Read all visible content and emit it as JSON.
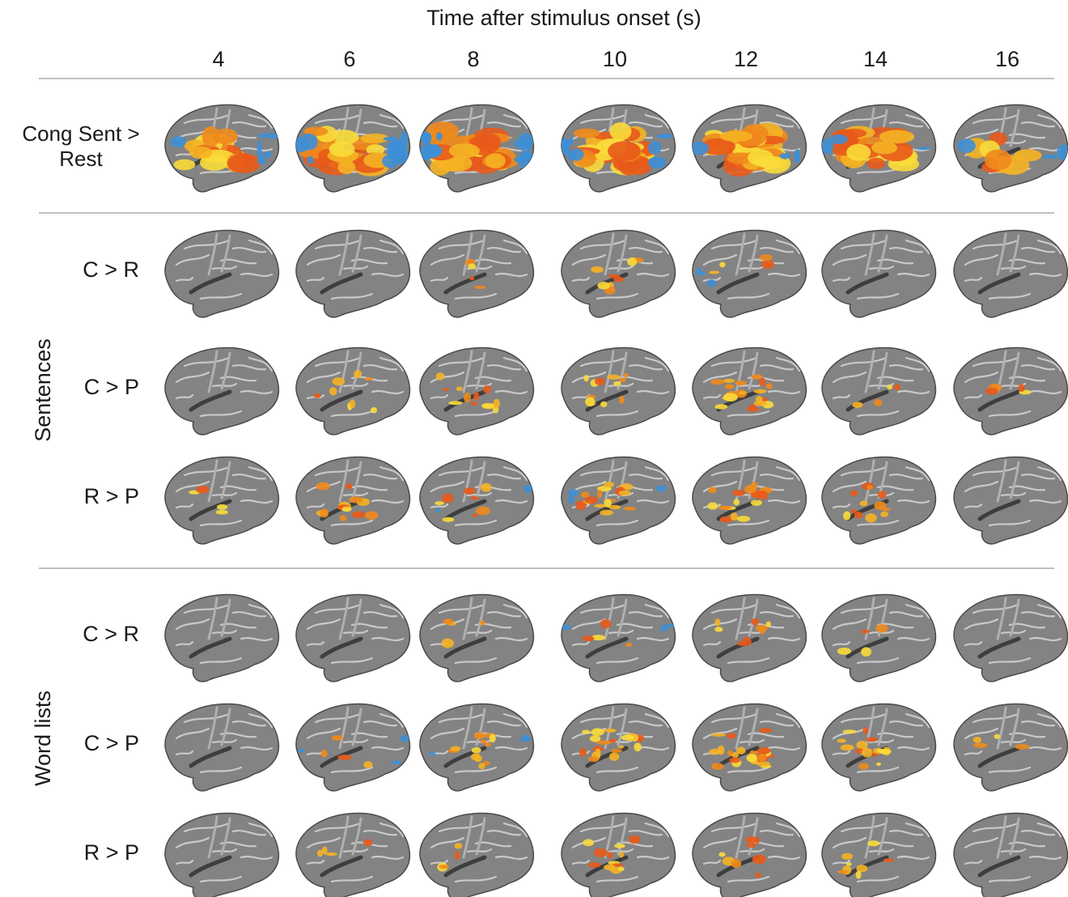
{
  "title": "Time after stimulus onset (s)",
  "columns": [
    "4",
    "6",
    "8",
    "10",
    "12",
    "14",
    "16"
  ],
  "top_row": {
    "label_lines": [
      "Cong Sent >",
      "Rest"
    ]
  },
  "groups": [
    {
      "label": "Sentences",
      "rows": [
        "C > R",
        "C > P",
        "R > P"
      ]
    },
    {
      "label": "Word lists",
      "rows": [
        "C > R",
        "C > P",
        "R > P"
      ]
    }
  ]
}
